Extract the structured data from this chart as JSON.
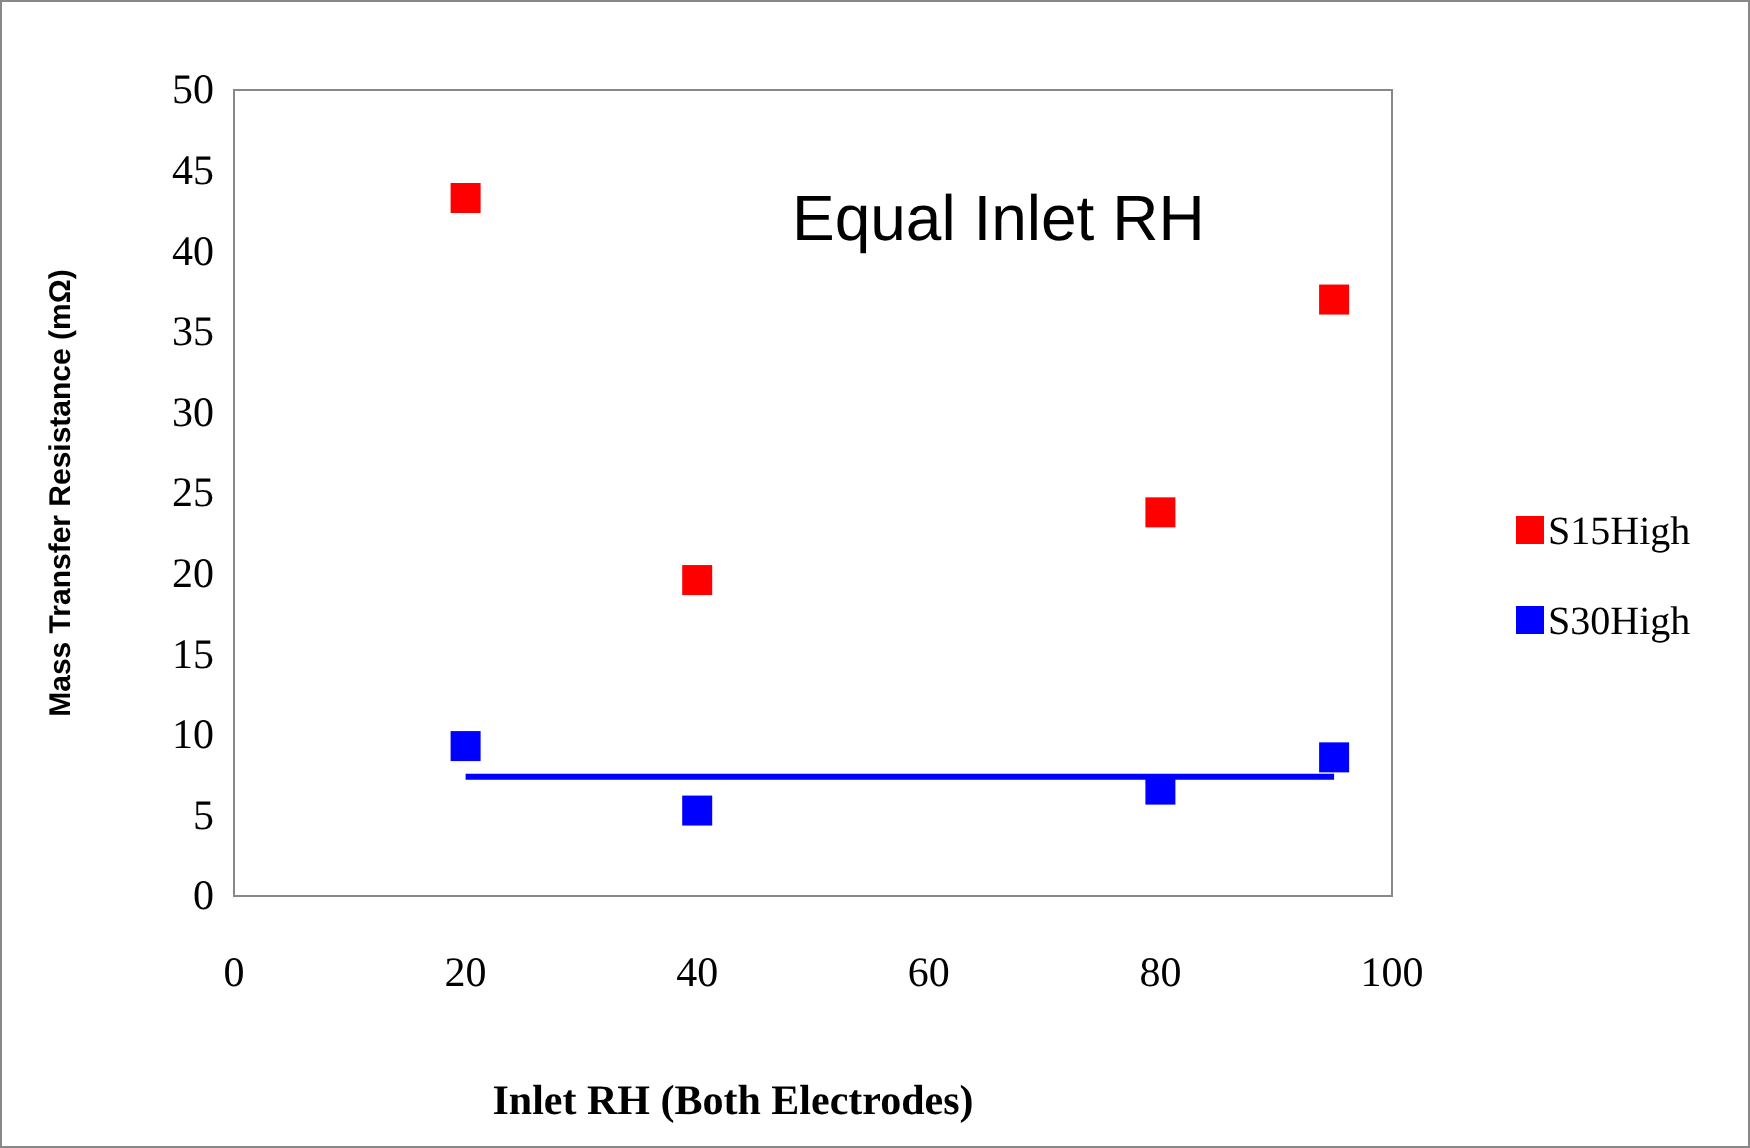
{
  "chart_data": {
    "type": "scatter",
    "xlabel": "Inlet RH (Both Electrodes)",
    "ylabel": "Mass Transfer Resistance (mΩ)",
    "annotations": [
      "Equal Inlet RH"
    ],
    "x": [
      20,
      40,
      80,
      95
    ],
    "series": [
      {
        "name": "S15High",
        "color": "#ff0000",
        "values": [
          43.3,
          19.6,
          23.8,
          37.0
        ]
      },
      {
        "name": "S30High",
        "color": "#0000ff",
        "values": [
          9.3,
          5.3,
          6.6,
          8.6
        ]
      },
      {
        "type": "line",
        "marker": "none",
        "color": "#0000ff",
        "x": [
          20,
          95
        ],
        "values": [
          7.4,
          7.4
        ]
      }
    ],
    "xlim": [
      0,
      100
    ],
    "xticks": [
      0,
      20,
      40,
      60,
      80,
      100
    ],
    "ylim": [
      0,
      50
    ],
    "yticks": [
      0,
      5,
      10,
      15,
      20,
      25,
      30,
      35,
      40,
      45,
      50
    ],
    "grid": false,
    "legend": "right",
    "marker": "square"
  }
}
